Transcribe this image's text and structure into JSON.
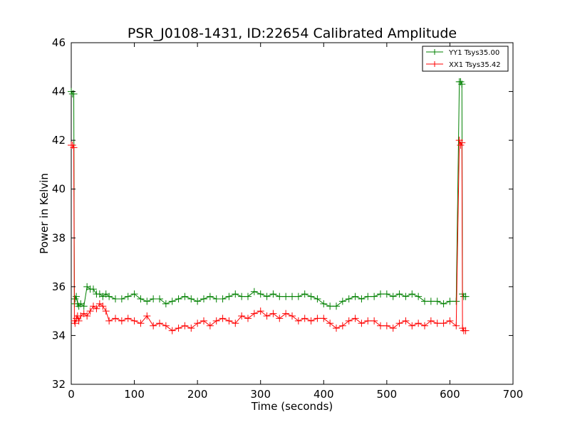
{
  "chart_data": {
    "type": "line",
    "title": "PSR_J0108-1431, ID:22654 Calibrated Amplitude",
    "xlabel": "Time (seconds)",
    "ylabel": "Power in Kelvin",
    "xlim": [
      0,
      700
    ],
    "ylim": [
      32,
      46
    ],
    "xticks": [
      0,
      100,
      200,
      300,
      400,
      500,
      600,
      700
    ],
    "xtick_labels": [
      "0",
      "100",
      "200",
      "300",
      "400",
      "500",
      "600",
      "700"
    ],
    "yticks": [
      32,
      34,
      36,
      38,
      40,
      42,
      44,
      46
    ],
    "ytick_labels": [
      "32",
      "34",
      "36",
      "38",
      "40",
      "42",
      "44",
      "46"
    ],
    "grid": false,
    "legend_position": "top-right",
    "series": [
      {
        "name": "YY1 Tsys35.00",
        "color": "#008000",
        "x": [
          0,
          2,
          4,
          5,
          6,
          8,
          10,
          12,
          15,
          20,
          25,
          30,
          35,
          40,
          45,
          50,
          55,
          60,
          70,
          80,
          90,
          100,
          110,
          120,
          130,
          140,
          150,
          160,
          170,
          180,
          190,
          200,
          210,
          220,
          230,
          240,
          250,
          260,
          270,
          280,
          290,
          300,
          310,
          320,
          330,
          340,
          350,
          360,
          370,
          380,
          390,
          400,
          410,
          420,
          430,
          440,
          450,
          460,
          470,
          480,
          490,
          500,
          510,
          520,
          530,
          540,
          550,
          560,
          570,
          580,
          590,
          600,
          610,
          615,
          617,
          619,
          620,
          622,
          625
        ],
        "y": [
          44.0,
          43.9,
          43.9,
          35.3,
          35.5,
          35.6,
          35.3,
          35.2,
          35.3,
          35.2,
          36.0,
          35.9,
          35.9,
          35.7,
          35.7,
          35.6,
          35.7,
          35.6,
          35.5,
          35.5,
          35.6,
          35.7,
          35.5,
          35.4,
          35.5,
          35.5,
          35.3,
          35.4,
          35.5,
          35.6,
          35.5,
          35.4,
          35.5,
          35.6,
          35.5,
          35.5,
          35.6,
          35.7,
          35.6,
          35.6,
          35.8,
          35.7,
          35.6,
          35.7,
          35.6,
          35.6,
          35.6,
          35.6,
          35.7,
          35.6,
          35.5,
          35.3,
          35.2,
          35.2,
          35.4,
          35.5,
          35.6,
          35.5,
          35.6,
          35.6,
          35.7,
          35.7,
          35.6,
          35.7,
          35.6,
          35.7,
          35.6,
          35.4,
          35.4,
          35.4,
          35.3,
          35.4,
          35.4,
          44.4,
          44.4,
          44.3,
          35.7,
          35.6,
          35.6
        ]
      },
      {
        "name": "XX1 Tsys35.42",
        "color": "#ff0000",
        "x": [
          0,
          2,
          4,
          5,
          6,
          8,
          10,
          12,
          15,
          20,
          25,
          30,
          35,
          40,
          45,
          50,
          55,
          60,
          70,
          80,
          90,
          100,
          110,
          120,
          130,
          140,
          150,
          160,
          170,
          180,
          190,
          200,
          210,
          220,
          230,
          240,
          250,
          260,
          270,
          280,
          290,
          300,
          310,
          320,
          330,
          340,
          350,
          360,
          370,
          380,
          390,
          400,
          410,
          420,
          430,
          440,
          450,
          460,
          470,
          480,
          490,
          500,
          510,
          520,
          530,
          540,
          550,
          560,
          570,
          580,
          590,
          600,
          610,
          615,
          617,
          619,
          620,
          622,
          625
        ],
        "y": [
          41.8,
          41.8,
          41.7,
          34.6,
          34.5,
          34.7,
          34.8,
          34.6,
          34.8,
          34.9,
          34.8,
          35.0,
          35.2,
          35.1,
          35.3,
          35.2,
          35.0,
          34.6,
          34.7,
          34.6,
          34.7,
          34.6,
          34.5,
          34.8,
          34.4,
          34.5,
          34.4,
          34.2,
          34.3,
          34.4,
          34.3,
          34.5,
          34.6,
          34.4,
          34.6,
          34.7,
          34.6,
          34.5,
          34.8,
          34.7,
          34.9,
          35.0,
          34.8,
          34.9,
          34.7,
          34.9,
          34.8,
          34.6,
          34.7,
          34.6,
          34.7,
          34.7,
          34.5,
          34.3,
          34.4,
          34.6,
          34.7,
          34.5,
          34.6,
          34.6,
          34.4,
          34.4,
          34.3,
          34.5,
          34.6,
          34.4,
          34.5,
          34.4,
          34.6,
          34.5,
          34.5,
          34.6,
          34.4,
          42.0,
          41.8,
          41.9,
          34.3,
          34.2,
          34.2
        ]
      }
    ]
  }
}
